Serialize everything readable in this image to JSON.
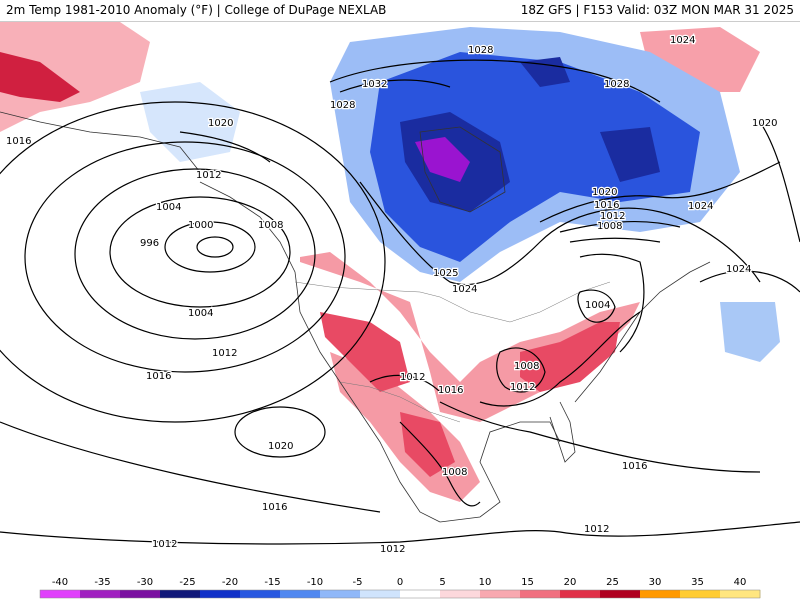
{
  "header": {
    "title_left": "2m Temp 1981-2010 Anomaly (°F) | College of DuPage NEXLAB",
    "title_right": "18Z GFS | F153 Valid: 03Z MON MAR 31 2025"
  },
  "isobar_labels": [
    "1016",
    "1020",
    "1012",
    "1004",
    "1000",
    "996",
    "1008",
    "1004",
    "1012",
    "1016",
    "1020",
    "1016",
    "1012",
    "1012",
    "1028",
    "1032",
    "1028",
    "1028",
    "1024",
    "1020",
    "1020",
    "1016",
    "1012",
    "1008",
    "1024",
    "1024",
    "1025",
    "1024",
    "1004",
    "1008",
    "1012",
    "1016",
    "1012",
    "1008",
    "1016",
    "1012"
  ],
  "legend": {
    "ticks": [
      "-40",
      "-35",
      "-30",
      "-25",
      "-20",
      "-15",
      "-10",
      "-5",
      "0",
      "5",
      "10",
      "15",
      "20",
      "25",
      "30",
      "35",
      "40"
    ],
    "colors": [
      "#e040fb",
      "#a020c0",
      "#7a10a0",
      "#101878",
      "#1030c8",
      "#2858e0",
      "#5088f0",
      "#90b8f8",
      "#d0e4fc",
      "#ffffff",
      "#fcd8dc",
      "#f8a8b0",
      "#f07080",
      "#e03048",
      "#b00020",
      "#ff9900",
      "#ffcc33",
      "#ffe680"
    ]
  },
  "colors": {
    "cold_deep": "#8a10c8",
    "cold": "#1a3ccc",
    "cool": "#8fb4f4",
    "warm": "#f59aa5",
    "hot": "#c8102e",
    "land_fill": "#ffffff",
    "isobar": "#000000"
  }
}
